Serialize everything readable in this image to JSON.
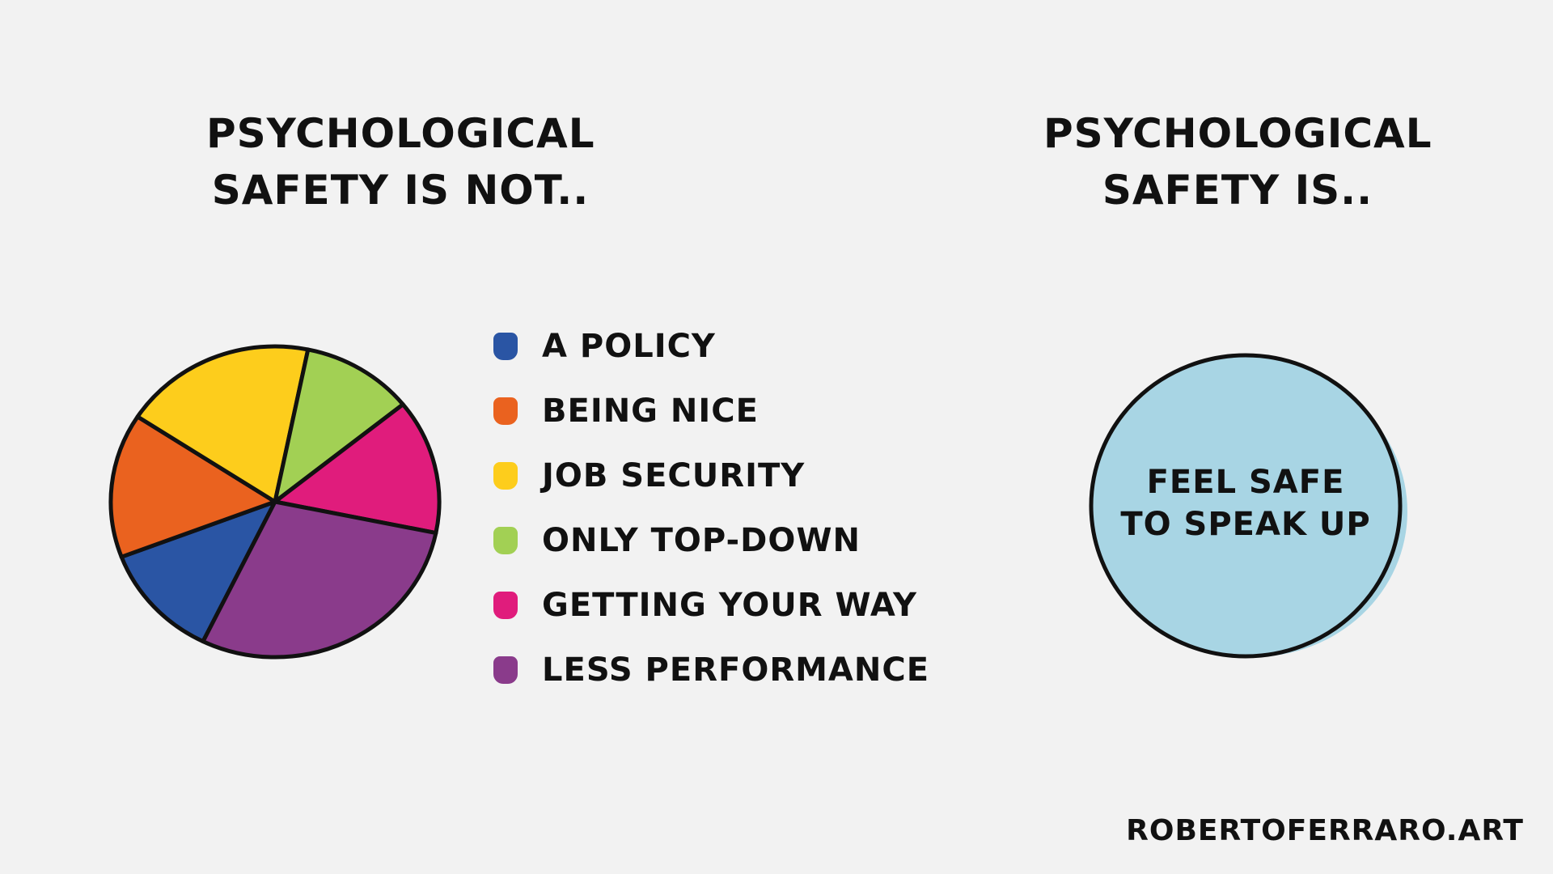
{
  "left": {
    "title_line1": "PSYCHOLOGICAL",
    "title_line2": "SAFETY IS NOT.."
  },
  "right": {
    "title_line1": "PSYCHOLOGICAL",
    "title_line2": "SAFETY IS..",
    "circle_line1": "FEEL SAFE",
    "circle_line2": "TO SPEAK UP",
    "circle_color": "#a8d5e4"
  },
  "credit": "ROBERTOFERRARO.ART",
  "chart_data": {
    "type": "pie",
    "title": "",
    "legend_position": "right",
    "start_angle_deg": 116,
    "categories": [
      "A POLICY",
      "BEING NICE",
      "JOB SECURITY",
      "ONLY TOP-DOWN",
      "GETTING YOUR WAY",
      "LESS PERFORMANCE"
    ],
    "values": [
      12,
      15,
      19,
      11,
      14,
      29
    ],
    "colors": [
      "#2a55a4",
      "#ea621f",
      "#fdcd1c",
      "#a2d054",
      "#e01c7c",
      "#8a3b8b"
    ]
  }
}
